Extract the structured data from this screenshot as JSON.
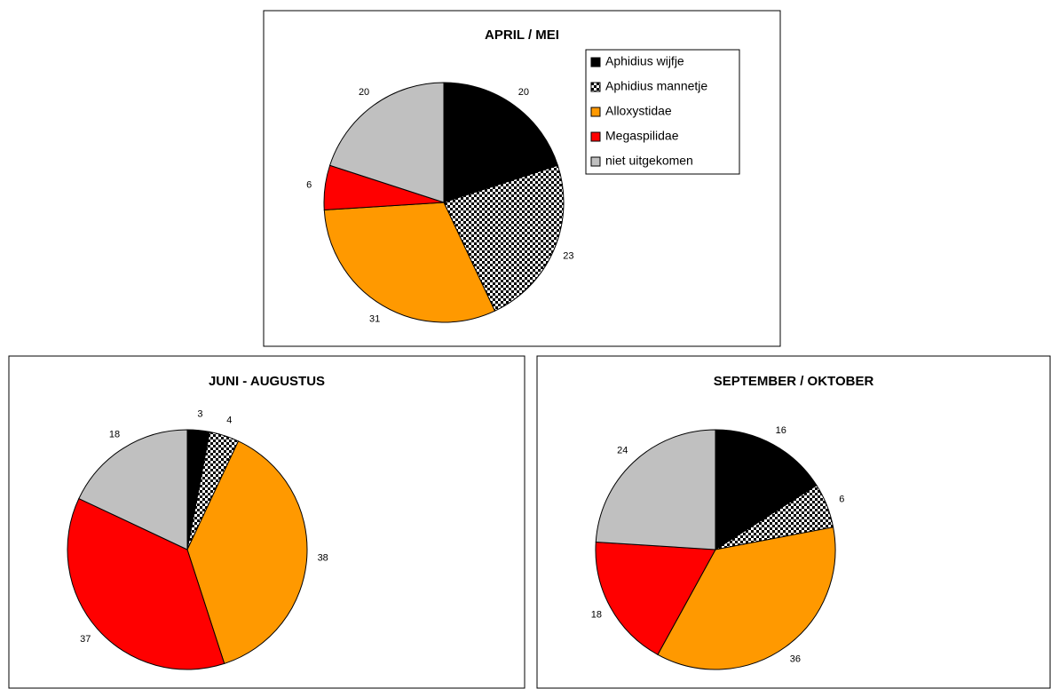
{
  "chart_data": [
    {
      "type": "pie",
      "title": "APRIL / MEI",
      "categories": [
        "Aphidius wijfje",
        "Aphidius mannetje",
        "Alloxystidae",
        "Megaspilidae",
        "niet uitgekomen"
      ],
      "values": [
        20,
        23,
        31,
        6,
        20
      ],
      "colors": [
        "#000000",
        "checker",
        "#ff9900",
        "#ff0000",
        "#c0c0c0"
      ],
      "legend": "right"
    },
    {
      "type": "pie",
      "title": "JUNI - AUGUSTUS",
      "values": [
        3,
        4,
        38,
        37,
        18
      ],
      "colors": [
        "#000000",
        "checker",
        "#ff9900",
        "#ff0000",
        "#c0c0c0"
      ]
    },
    {
      "type": "pie",
      "title": "SEPTEMBER / OKTOBER",
      "values": [
        16,
        6,
        36,
        18,
        24
      ],
      "colors": [
        "#000000",
        "checker",
        "#ff9900",
        "#ff0000",
        "#c0c0c0"
      ]
    }
  ]
}
